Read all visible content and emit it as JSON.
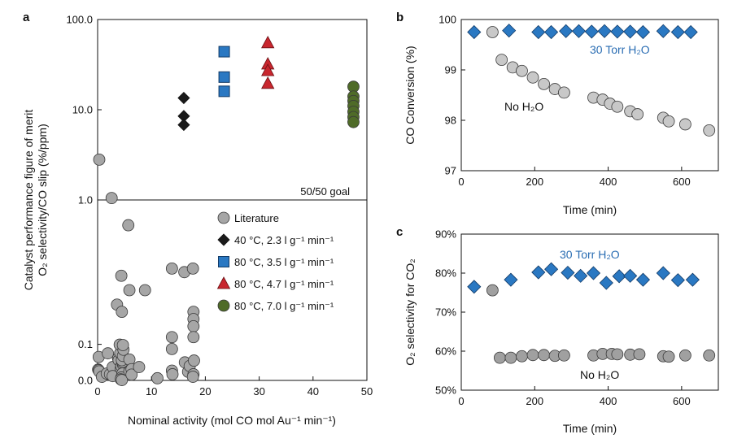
{
  "colors": {
    "literature": "#a6a6a6",
    "c40": "#1a1a1a",
    "c80_35": "#2a78c2",
    "c80_47": "#c8262e",
    "c80_70": "#4f6b28",
    "water_blue": "#2a78c2",
    "annot_blue": "#2a6db3",
    "no_water_grey": "#c8c8c8",
    "no_water_grey_c": "#a0a0a0"
  },
  "chart_data": [
    {
      "panel": "a",
      "type": "scatter",
      "xlabel": "Nominal activity (mol CO mol Au⁻¹ min⁻¹)",
      "ylabel_line1": "Catalyst performance figure of merit",
      "ylabel_line2": "O₂ selectivity/CO slip (%/ppm)",
      "xlim": [
        0,
        50
      ],
      "xticks": [
        "0",
        "10",
        "20",
        "30",
        "40",
        "50"
      ],
      "yticks_upper": [
        "100.0",
        "10.0",
        "1.0"
      ],
      "yticks_lower": [
        "0.1",
        "0.0"
      ],
      "goal_label": "50/50 goal",
      "legend": [
        {
          "label": "Literature",
          "marker": "circle",
          "color": "#a6a6a6"
        },
        {
          "label": "40 °C, 2.3 l g⁻¹ min⁻¹",
          "marker": "diamond",
          "color": "#1a1a1a"
        },
        {
          "label": "80 °C, 3.5 l g⁻¹ min⁻¹",
          "marker": "square",
          "color": "#2a78c2"
        },
        {
          "label": "80 °C, 4.7 l g⁻¹ min⁻¹",
          "marker": "triangle",
          "color": "#c8262e"
        },
        {
          "label": "80 °C, 7.0 l g⁻¹ min⁻¹",
          "marker": "circle",
          "color": "#4f6b28"
        }
      ],
      "series_upper": [
        {
          "name": "Literature",
          "points": [
            [
              0.3,
              2.8
            ],
            [
              2.6,
              1.05
            ]
          ]
        },
        {
          "name": "40 °C",
          "points": [
            [
              16,
              13.5
            ],
            [
              16,
              8.5
            ],
            [
              16,
              6.8
            ]
          ]
        },
        {
          "name": "80 °C 3.5",
          "points": [
            [
              23.5,
              44
            ],
            [
              23.5,
              23
            ],
            [
              23.5,
              16
            ]
          ]
        },
        {
          "name": "80 °C 4.7",
          "points": [
            [
              31.6,
              55
            ],
            [
              31.6,
              32
            ],
            [
              31.6,
              27
            ],
            [
              31.6,
              19.5
            ]
          ]
        },
        {
          "name": "80 °C 7.0",
          "points": [
            [
              47.5,
              18
            ],
            [
              47.5,
              14
            ],
            [
              47.5,
              12.5
            ],
            [
              47.5,
              11
            ],
            [
              47.5,
              9.5
            ],
            [
              47.5,
              8.3
            ],
            [
              47.5,
              7.3
            ]
          ]
        }
      ],
      "series_lower": [
        {
          "name": "Literature",
          "points": [
            [
              0.2,
              0.065
            ],
            [
              0.1,
              0.03
            ],
            [
              0.2,
              0.028
            ],
            [
              0.3,
              0.025
            ],
            [
              0.8,
              0.01
            ],
            [
              1.9,
              0.075
            ],
            [
              1.7,
              0.019
            ],
            [
              2.3,
              0.017
            ],
            [
              2.8,
              0.037
            ],
            [
              2.8,
              0.012
            ],
            [
              3.6,
              0.21
            ],
            [
              3.8,
              0.061
            ],
            [
              3.9,
              0.056
            ],
            [
              4.2,
              0.076
            ],
            [
              4.1,
              0.099
            ],
            [
              4.4,
              0.29
            ],
            [
              4.5,
              0.19
            ],
            [
              4.3,
              0.033
            ],
            [
              4.4,
              0.04
            ],
            [
              4.7,
              0.044
            ],
            [
              4.6,
              0.051
            ],
            [
              4.5,
              0.056
            ],
            [
              4.7,
              0.068
            ],
            [
              4.8,
              0.085
            ],
            [
              4.7,
              0.098
            ],
            [
              4.6,
              0.019
            ],
            [
              4.4,
              0.008
            ],
            [
              4.3,
              0.003
            ],
            [
              4.5,
              0.001
            ],
            [
              5.7,
              0.43
            ],
            [
              5.9,
              0.25
            ],
            [
              5.9,
              0.058
            ],
            [
              5.9,
              0.025
            ],
            [
              6.3,
              0.031
            ],
            [
              6.3,
              0.016
            ],
            [
              7.7,
              0.037
            ],
            [
              8.8,
              0.25
            ],
            [
              11.1,
              0.006
            ],
            [
              13.8,
              0.31
            ],
            [
              13.8,
              0.12
            ],
            [
              13.8,
              0.087
            ],
            [
              13.8,
              0.027
            ],
            [
              13.9,
              0.017
            ],
            [
              16.1,
              0.3
            ],
            [
              16.2,
              0.05
            ],
            [
              16.8,
              0.024
            ],
            [
              17.1,
              0.04
            ],
            [
              17.7,
              0.31
            ],
            [
              17.8,
              0.19
            ],
            [
              17.8,
              0.17
            ],
            [
              17.8,
              0.15
            ],
            [
              17.8,
              0.12
            ],
            [
              17.9,
              0.055
            ],
            [
              17.8,
              0.017
            ],
            [
              17.7,
              0.01
            ]
          ]
        }
      ]
    },
    {
      "panel": "b",
      "type": "scatter",
      "xlabel": "Time (min)",
      "ylabel": "CO Conversion (%)",
      "xlim": [
        0,
        700
      ],
      "ylim": [
        97,
        100
      ],
      "xticks": [
        "0",
        "200",
        "400",
        "600"
      ],
      "yticks": [
        "97",
        "98",
        "99",
        "100"
      ],
      "annotation_water": "30 Torr H₂O",
      "annotation_no_water": "No H₂O",
      "series": [
        {
          "name": "30 Torr H2O",
          "x": [
            35,
            130,
            210,
            245,
            285,
            320,
            355,
            390,
            425,
            460,
            495,
            550,
            590,
            625
          ],
          "y": [
            99.75,
            99.78,
            99.75,
            99.75,
            99.77,
            99.77,
            99.76,
            99.77,
            99.76,
            99.76,
            99.75,
            99.77,
            99.75,
            99.75
          ]
        },
        {
          "name": "No H2O",
          "x": [
            85,
            110,
            140,
            165,
            195,
            225,
            255,
            280,
            360,
            385,
            405,
            425,
            460,
            480,
            550,
            565,
            610,
            675
          ],
          "y": [
            99.75,
            99.2,
            99.05,
            98.98,
            98.85,
            98.72,
            98.62,
            98.55,
            98.45,
            98.41,
            98.33,
            98.27,
            98.18,
            98.12,
            98.05,
            97.98,
            97.92,
            97.8
          ]
        }
      ]
    },
    {
      "panel": "c",
      "type": "scatter",
      "xlabel": "Time (min)",
      "ylabel": "O₂ selectivity for CO₂",
      "xlim": [
        0,
        700
      ],
      "ylim": [
        50,
        90
      ],
      "xticks": [
        "0",
        "200",
        "400",
        "600"
      ],
      "yticks": [
        "50%",
        "60%",
        "70%",
        "80%",
        "90%"
      ],
      "annotation_water": "30 Torr H₂O",
      "annotation_no_water": "No H₂O",
      "series": [
        {
          "name": "30 Torr H2O",
          "x": [
            35,
            135,
            210,
            245,
            290,
            325,
            360,
            395,
            430,
            460,
            495,
            550,
            590,
            630
          ],
          "y": [
            76.5,
            78.3,
            80.2,
            81,
            80.1,
            79.3,
            80,
            77.5,
            79.2,
            79.3,
            78.3,
            80,
            78.2,
            78.3
          ]
        },
        {
          "name": "No H2O",
          "x": [
            85,
            105,
            135,
            165,
            195,
            225,
            255,
            280,
            360,
            385,
            410,
            425,
            460,
            485,
            550,
            565,
            610,
            675
          ],
          "y": [
            75.6,
            58.3,
            58.3,
            58.7,
            59,
            59,
            58.8,
            58.9,
            58.9,
            59.3,
            59.3,
            59.2,
            59.1,
            59.2,
            58.7,
            58.6,
            58.9,
            58.9
          ]
        }
      ]
    }
  ]
}
